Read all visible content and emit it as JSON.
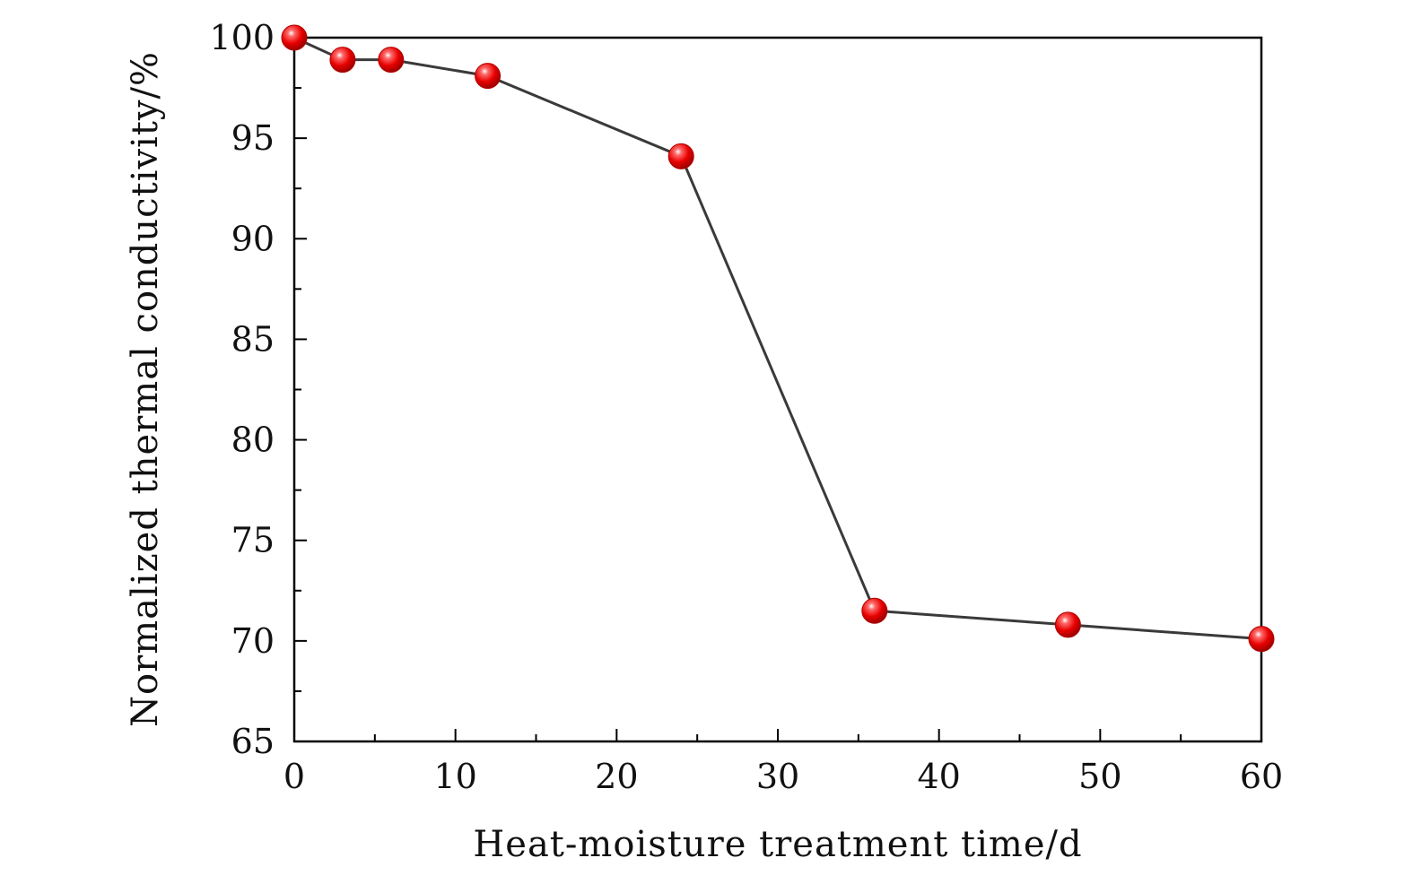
{
  "chart_data": {
    "type": "line",
    "title": "",
    "xlabel": "Heat-moisture treatment time/d",
    "ylabel": "Normalized thermal conductivity/%",
    "xlim": [
      0,
      60
    ],
    "ylim": [
      65,
      100
    ],
    "x_ticks": [
      0,
      10,
      20,
      30,
      40,
      50,
      60
    ],
    "x_minor_ticks": [
      5,
      15,
      25,
      35,
      45,
      55
    ],
    "y_ticks": [
      65,
      70,
      75,
      80,
      85,
      90,
      95,
      100
    ],
    "y_minor_ticks": [
      67.5,
      72.5,
      77.5,
      82.5,
      87.5,
      92.5,
      97.5
    ],
    "grid": false,
    "legend": "none",
    "series": [
      {
        "x": [
          0,
          3,
          6,
          12,
          24,
          36,
          48,
          60
        ],
        "values": [
          100,
          98.9,
          98.9,
          98.1,
          94.1,
          71.5,
          70.8,
          70.1
        ]
      }
    ],
    "colors": {
      "line": "#3a3a3a",
      "marker": "#e00000",
      "marker_highlight": "#ffffff",
      "axis": "#000000"
    }
  }
}
